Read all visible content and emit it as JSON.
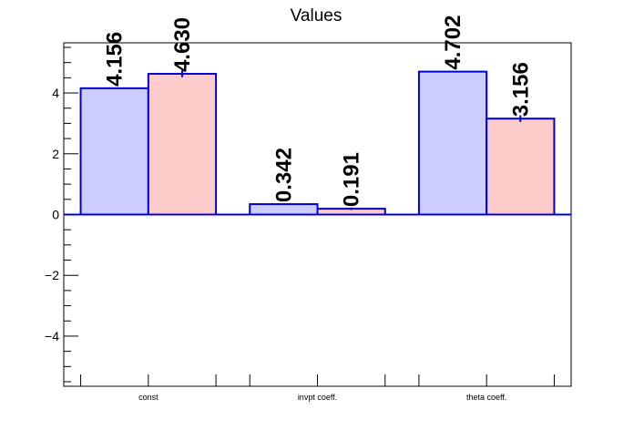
{
  "chart_data": {
    "type": "bar",
    "title": "Values",
    "categories": [
      "const",
      "invpt coeff.",
      "theta coeff."
    ],
    "series": [
      {
        "values": [
          4.156,
          0.342,
          4.702
        ],
        "errors": [
          0.0,
          0.0,
          0.0
        ],
        "color": "#ccccff"
      },
      {
        "values": [
          4.63,
          0.191,
          3.156
        ],
        "errors": [
          0.11,
          0.04,
          0.11
        ],
        "color": "#ffcccc"
      }
    ],
    "data_labels": [
      [
        "4.156",
        "0.342",
        "4.702"
      ],
      [
        "4.630",
        "0.191",
        "3.156"
      ]
    ],
    "ylim": [
      -5.65,
      5.65
    ],
    "yticks": [
      -4,
      -2,
      0,
      2,
      4
    ],
    "ytick_labels": [
      "−4",
      "−2",
      "0",
      "2",
      "4"
    ],
    "xlabel": "",
    "ylabel": "",
    "grid": false,
    "legend": "none",
    "bar_edge_color": "#0000cc"
  }
}
